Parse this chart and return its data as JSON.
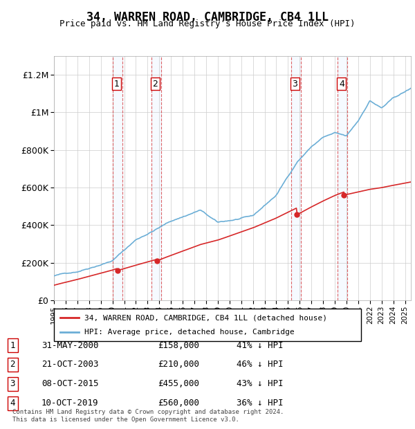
{
  "title": "34, WARREN ROAD, CAMBRIDGE, CB4 1LL",
  "subtitle": "Price paid vs. HM Land Registry's House Price Index (HPI)",
  "footer": "Contains HM Land Registry data © Crown copyright and database right 2024.\nThis data is licensed under the Open Government Licence v3.0.",
  "legend_label_red": "34, WARREN ROAD, CAMBRIDGE, CB4 1LL (detached house)",
  "legend_label_blue": "HPI: Average price, detached house, Cambridge",
  "transactions": [
    {
      "num": 1,
      "date": "31-MAY-2000",
      "price": 158000,
      "pct": "41%",
      "year_x": 2000.42
    },
    {
      "num": 2,
      "date": "21-OCT-2003",
      "price": 210000,
      "pct": "46%",
      "year_x": 2003.8
    },
    {
      "num": 3,
      "date": "08-OCT-2015",
      "price": 455000,
      "pct": "43%",
      "year_x": 2015.77
    },
    {
      "num": 4,
      "date": "10-OCT-2019",
      "price": 560000,
      "pct": "36%",
      "year_x": 2019.77
    }
  ],
  "hpi_color": "#6baed6",
  "price_color": "#d62728",
  "shade_color": "#ddeeff",
  "dashed_color": "#d62728",
  "ylim": [
    0,
    1300000
  ],
  "xlim": [
    1995,
    2025.5
  ]
}
